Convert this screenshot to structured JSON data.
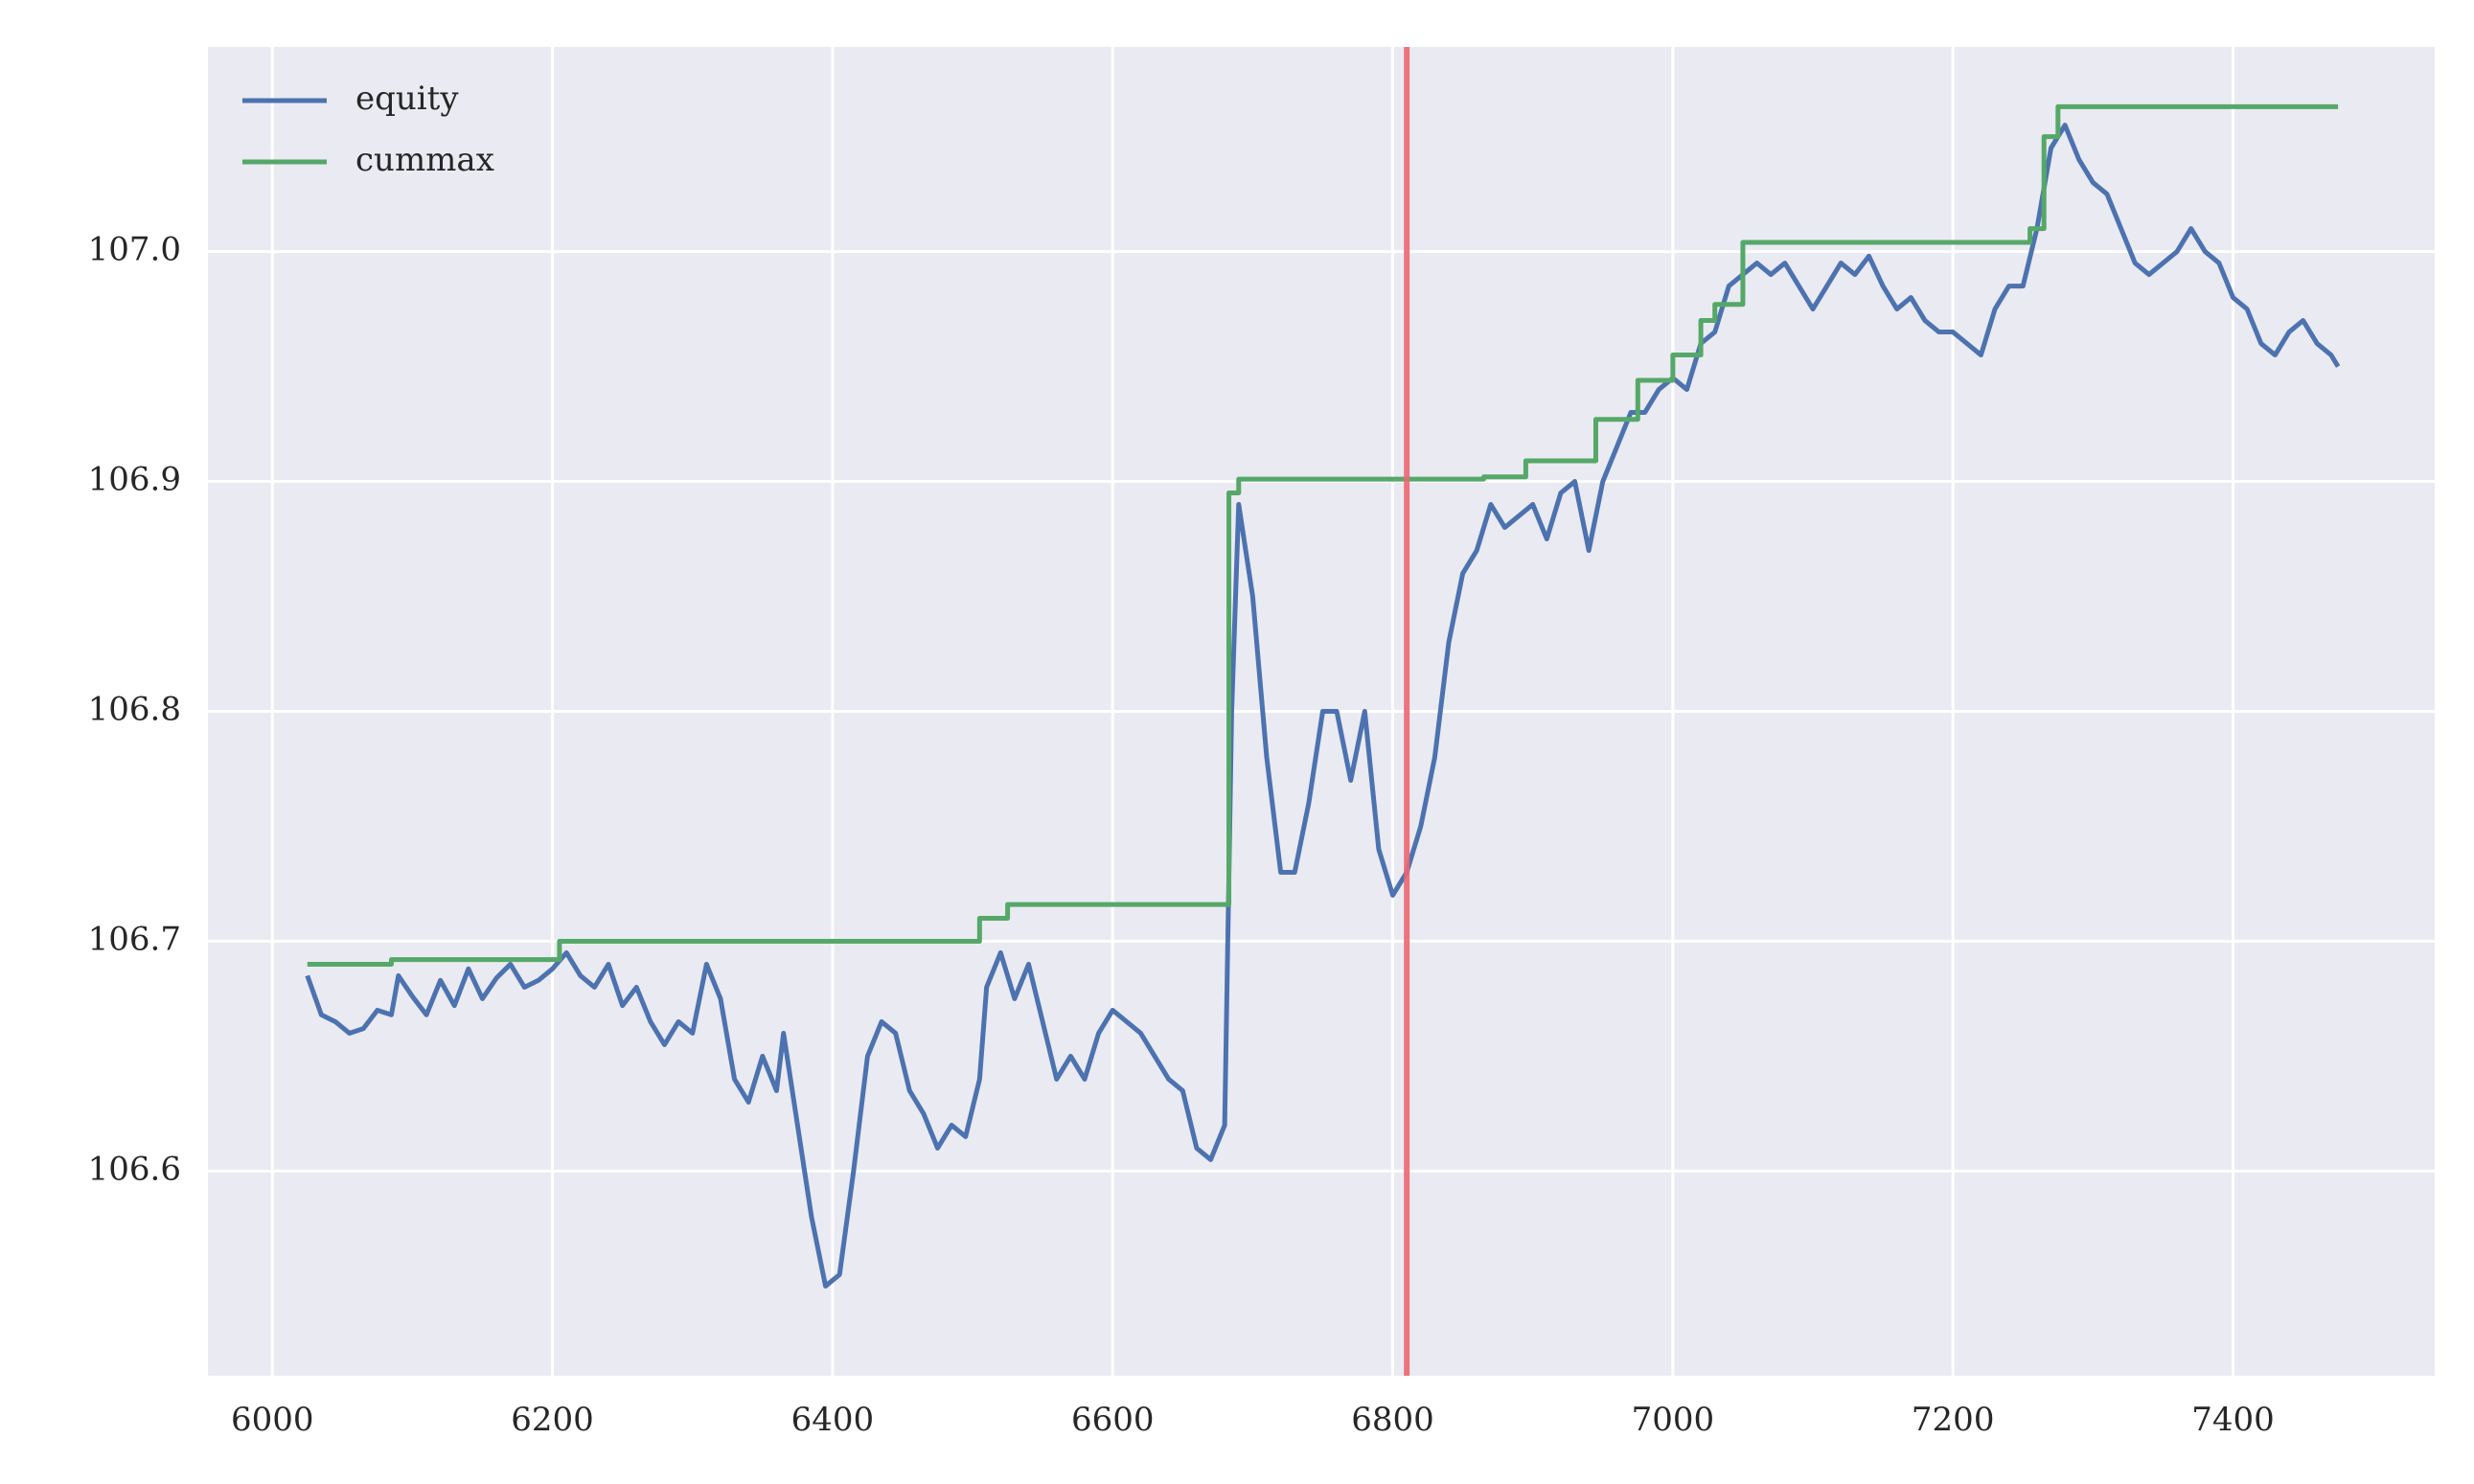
{
  "chart_data": {
    "type": "line",
    "xlim": [
      5954,
      7544
    ],
    "ylim": [
      106.511,
      107.089
    ],
    "xticks": [
      6000,
      6200,
      6400,
      6600,
      6800,
      7000,
      7200,
      7400
    ],
    "yticks": [
      {
        "value": 106.6,
        "label": "106.6"
      },
      {
        "value": 106.7,
        "label": "106.7"
      },
      {
        "value": 106.8,
        "label": "106.8"
      },
      {
        "value": 106.9,
        "label": "106.9"
      },
      {
        "value": 107.0,
        "label": "107.0"
      }
    ],
    "grid": true,
    "background": "#eaeaf2",
    "legend": "upper-left",
    "vlines": [
      {
        "x": 6810,
        "color": "#ea6872"
      }
    ],
    "series": [
      {
        "name": "equity",
        "color": "#4c72b0",
        "step": false,
        "x": [
          6025,
          6035,
          6045,
          6055,
          6065,
          6075,
          6085,
          6090,
          6100,
          6110,
          6120,
          6130,
          6140,
          6150,
          6160,
          6170,
          6180,
          6190,
          6200,
          6210,
          6220,
          6230,
          6240,
          6250,
          6260,
          6270,
          6280,
          6290,
          6300,
          6310,
          6320,
          6330,
          6340,
          6350,
          6360,
          6365,
          6375,
          6385,
          6395,
          6405,
          6415,
          6425,
          6435,
          6445,
          6455,
          6465,
          6475,
          6485,
          6495,
          6505,
          6510,
          6520,
          6530,
          6540,
          6550,
          6560,
          6570,
          6580,
          6590,
          6600,
          6610,
          6620,
          6630,
          6640,
          6650,
          6660,
          6670,
          6680,
          6685,
          6690,
          6700,
          6710,
          6720,
          6730,
          6740,
          6750,
          6760,
          6770,
          6780,
          6790,
          6800,
          6810,
          6820,
          6830,
          6840,
          6850,
          6860,
          6870,
          6880,
          6890,
          6900,
          6910,
          6920,
          6930,
          6940,
          6950,
          6960,
          6970,
          6980,
          6990,
          7000,
          7010,
          7020,
          7030,
          7040,
          7050,
          7060,
          7070,
          7080,
          7090,
          7100,
          7110,
          7120,
          7130,
          7140,
          7150,
          7160,
          7170,
          7180,
          7190,
          7200,
          7210,
          7220,
          7230,
          7240,
          7250,
          7260,
          7270,
          7280,
          7290,
          7300,
          7310,
          7320,
          7330,
          7340,
          7350,
          7360,
          7370,
          7380,
          7390,
          7400,
          7410,
          7420,
          7430,
          7440,
          7450,
          7460,
          7470,
          7475
        ],
        "values": [
          106.685,
          106.668,
          106.665,
          106.66,
          106.662,
          106.67,
          106.668,
          106.685,
          106.676,
          106.668,
          106.683,
          106.672,
          106.688,
          106.675,
          106.684,
          106.69,
          106.68,
          106.683,
          106.688,
          106.695,
          106.685,
          106.68,
          106.69,
          106.672,
          106.68,
          106.665,
          106.655,
          106.665,
          106.66,
          106.69,
          106.675,
          106.64,
          106.63,
          106.65,
          106.635,
          106.66,
          106.62,
          106.58,
          106.55,
          106.555,
          106.6,
          106.65,
          106.665,
          106.66,
          106.635,
          106.625,
          106.61,
          106.62,
          106.615,
          106.64,
          106.68,
          106.695,
          106.675,
          106.69,
          106.665,
          106.64,
          106.65,
          106.64,
          106.66,
          106.67,
          106.665,
          106.66,
          106.65,
          106.64,
          106.635,
          106.61,
          106.605,
          106.62,
          106.8,
          106.89,
          106.85,
          106.78,
          106.73,
          106.73,
          106.76,
          106.8,
          106.8,
          106.77,
          106.8,
          106.74,
          106.72,
          106.73,
          106.75,
          106.78,
          106.83,
          106.86,
          106.87,
          106.89,
          106.88,
          106.885,
          106.89,
          106.875,
          106.895,
          106.9,
          106.87,
          106.9,
          106.915,
          106.93,
          106.93,
          106.94,
          106.945,
          106.94,
          106.96,
          106.965,
          106.985,
          106.99,
          106.995,
          106.99,
          106.995,
          106.985,
          106.975,
          106.985,
          106.995,
          106.99,
          106.998,
          106.985,
          106.975,
          106.98,
          106.97,
          106.965,
          106.965,
          106.96,
          106.955,
          106.975,
          106.985,
          106.985,
          107.01,
          107.045,
          107.055,
          107.04,
          107.03,
          107.025,
          107.01,
          106.995,
          106.99,
          106.995,
          107.0,
          107.01,
          107.0,
          106.995,
          106.98,
          106.975,
          106.96,
          106.955,
          106.965,
          106.97,
          106.96,
          106.955,
          106.95
        ]
      },
      {
        "name": "cummax",
        "color": "#55a868",
        "step": true,
        "x": [
          6025,
          6085,
          6205,
          6505,
          6525,
          6683,
          6690,
          6865,
          6895,
          6945,
          6975,
          7000,
          7020,
          7030,
          7050,
          7255,
          7265,
          7275,
          7475
        ],
        "values": [
          106.69,
          106.692,
          106.7,
          106.71,
          106.716,
          106.895,
          106.901,
          106.902,
          106.909,
          106.927,
          106.944,
          106.955,
          106.97,
          106.977,
          107.004,
          107.01,
          107.05,
          107.063,
          107.063
        ]
      }
    ]
  }
}
